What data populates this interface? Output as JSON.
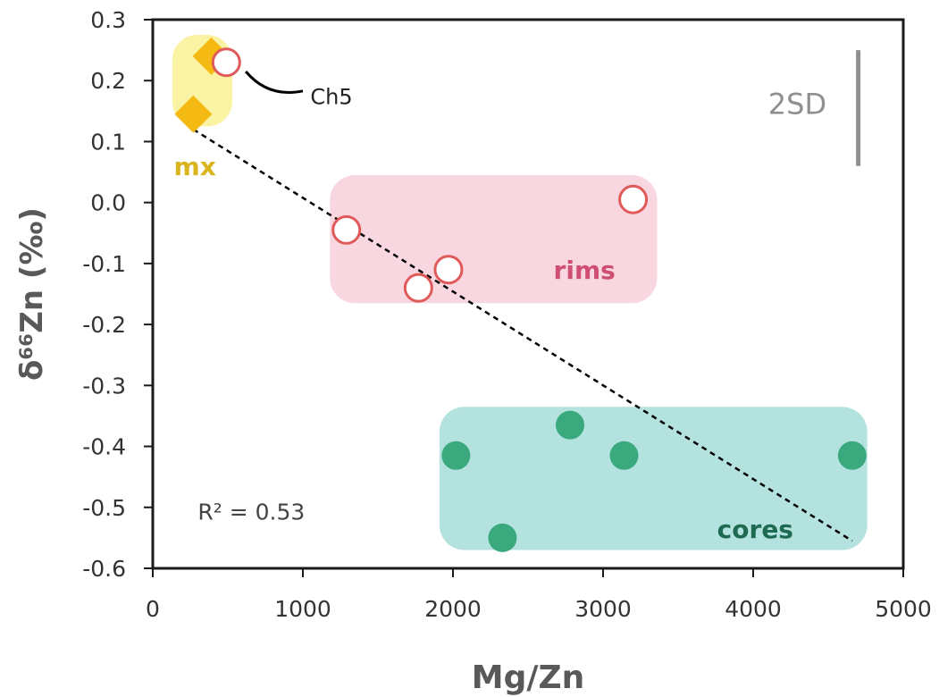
{
  "chart_data": {
    "type": "scatter",
    "xlabel": "Mg/Zn",
    "ylabel": "δ⁶⁶Zn (‰)",
    "xlim": [
      0,
      5000
    ],
    "ylim": [
      -0.6,
      0.3
    ],
    "xticks": [
      0,
      1000,
      2000,
      3000,
      4000,
      5000
    ],
    "yticks": [
      0.3,
      0.2,
      0.1,
      0.0,
      -0.1,
      -0.2,
      -0.3,
      -0.4,
      -0.5,
      -0.6
    ],
    "ytick_labels": [
      "0.3",
      "0.2",
      "0.1",
      "0.0",
      "-0.1",
      "-0.2",
      "-0.3",
      "-0.4",
      "-0.5",
      "-0.6"
    ],
    "grid": false,
    "series": [
      {
        "name": "mx",
        "marker": "diamond",
        "color": "#f5b914",
        "points": [
          {
            "x": 390,
            "y": 0.24
          },
          {
            "x": 270,
            "y": 0.145
          }
        ]
      },
      {
        "name": "rims",
        "marker": "open-circle",
        "color": "#e05a5a",
        "points": [
          {
            "x": 490,
            "y": 0.23
          },
          {
            "x": 1290,
            "y": -0.045
          },
          {
            "x": 1770,
            "y": -0.14
          },
          {
            "x": 1970,
            "y": -0.11
          },
          {
            "x": 3200,
            "y": 0.005
          }
        ]
      },
      {
        "name": "cores",
        "marker": "filled-circle",
        "color": "#3aaa7e",
        "points": [
          {
            "x": 2020,
            "y": -0.415
          },
          {
            "x": 2330,
            "y": -0.55
          },
          {
            "x": 2780,
            "y": -0.365
          },
          {
            "x": 3140,
            "y": -0.415
          },
          {
            "x": 4660,
            "y": -0.415
          }
        ]
      }
    ],
    "groups": [
      {
        "label": "mx",
        "x_range": [
          130,
          530
        ],
        "y_range": [
          0.125,
          0.275
        ],
        "fill": "#fbf3a4",
        "text_color": "#d9b41c",
        "label_at": [
          140,
          0.045
        ]
      },
      {
        "label": "rims",
        "x_range": [
          1180,
          3360
        ],
        "y_range": [
          -0.165,
          0.045
        ],
        "fill": "#f9d7e0",
        "text_color": "#cf4f72",
        "label_at": [
          2670,
          -0.125
        ]
      },
      {
        "label": "cores",
        "x_range": [
          1910,
          4760
        ],
        "y_range": [
          -0.57,
          -0.335
        ],
        "fill": "#b4e2df",
        "text_color": "#1f6b52",
        "label_at": [
          3760,
          -0.55
        ]
      }
    ],
    "trendline": {
      "style": "dashed",
      "color": "#000000",
      "x": [
        270,
        4660
      ],
      "y": [
        0.12,
        -0.555
      ]
    },
    "annotations": [
      {
        "text": "Ch5",
        "x": 1050,
        "y": 0.175,
        "leader_from": [
          620,
          0.215
        ],
        "leader_to": [
          1000,
          0.183
        ]
      },
      {
        "text": "R² = 0.53",
        "x": 300,
        "y": -0.52
      },
      {
        "text": "2SD",
        "x": 4100,
        "y": 0.145,
        "bar": {
          "x": 4700,
          "y_from": 0.25,
          "y_to": 0.06
        }
      }
    ]
  }
}
